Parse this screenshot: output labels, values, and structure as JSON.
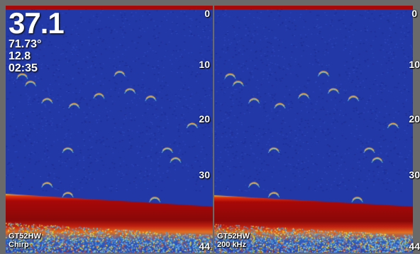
{
  "readouts": {
    "depth": "37.1",
    "temperature": "71.73°",
    "speed": "12.8",
    "time": "02:35"
  },
  "left_pane": {
    "transducer": "GT52HW",
    "frequency": "Chirp",
    "depth_scale": [
      "0",
      "10",
      "20",
      "30",
      "44"
    ]
  },
  "right_pane": {
    "transducer": "GT52HW",
    "frequency": "200 kHz",
    "depth_scale": [
      "0",
      "10",
      "20",
      "30",
      "44"
    ]
  },
  "colors": {
    "water": "#2238a6",
    "bottom_strong": "#a80808",
    "bottom_mid": "#e03010",
    "clutter": "#6fb0e0"
  }
}
